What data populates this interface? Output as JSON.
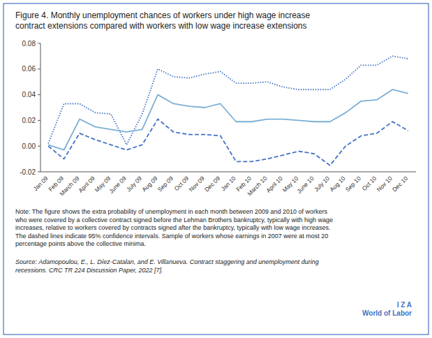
{
  "chart_data": {
    "type": "line",
    "title": "Figure 4. Monthly unemployment chances of workers under high wage increase\ncontract extensions compared with workers with low wage increase extensions",
    "categories": [
      "Jan 09",
      "Feb 09",
      "March 09",
      "April 09",
      "May 09",
      "June 09",
      "July 09",
      "Aug 09",
      "Sep 09",
      "Oct 09",
      "Nov 09",
      "Dec 09",
      "Jan 10",
      "Feb 10",
      "March 10",
      "April 10",
      "May 10",
      "June 10",
      "July 10",
      "Aug 10",
      "Sep 10",
      "Oct 10",
      "Nov 10",
      "Dec 10"
    ],
    "series": [
      {
        "color": "#4472C4",
        "line_style": "dotted",
        "values": [
          0.002,
          0.033,
          0.033,
          0.026,
          0.025,
          0.001,
          0.025,
          0.06,
          0.054,
          0.053,
          0.056,
          0.058,
          0.049,
          0.049,
          0.05,
          0.046,
          0.044,
          0.044,
          0.044,
          0.052,
          0.063,
          0.063,
          0.07,
          0.068
        ]
      },
      {
        "color": "#7BAFD4",
        "line_style": "solid",
        "values": [
          0.001,
          -0.003,
          0.021,
          0.015,
          0.013,
          0.011,
          0.013,
          0.04,
          0.033,
          0.031,
          0.03,
          0.033,
          0.019,
          0.019,
          0.021,
          0.021,
          0.02,
          0.019,
          0.019,
          0.026,
          0.035,
          0.036,
          0.044,
          0.041
        ]
      },
      {
        "color": "#4472C4",
        "line_style": "dashed",
        "values": [
          0.0,
          -0.01,
          0.01,
          0.005,
          0.001,
          -0.003,
          0.001,
          0.021,
          0.011,
          0.009,
          0.009,
          0.008,
          -0.012,
          -0.012,
          -0.01,
          -0.007,
          -0.004,
          -0.006,
          -0.015,
          0.0,
          0.008,
          0.01,
          0.019,
          0.012
        ]
      }
    ],
    "ylim": [
      -0.02,
      0.08
    ],
    "yticks": [
      -0.02,
      {
        "value": 0.0,
        "label": "0.00"
      },
      0.02,
      0.04,
      0.06,
      0.08
    ],
    "grid": false,
    "annotations": [
      "Note: The figure shows the extra probability of unemployment in each month between 2009 and 2010 of workers\nwho were covered by a collective contract signed before the Lehman Brothers bankruptcy, typically with high wage\nincreases, relative to workers covered by contracts signed after the bankruptcy, typically with low wage increases.\nThe dashed lines indicate 95% confidence intervals. Sample of workers whose earnings in 2007 were at most 20\npercentage points above the collective minima.",
      "Source: Adamopoulou, E., L. Díez-Catalan, and E. Villanueva. Contract staggering and unemployment during\nrecessions. CRC TR 224 Discussion Paper, 2022 [7].",
      "I Z A\nWorld of Labor"
    ]
  }
}
